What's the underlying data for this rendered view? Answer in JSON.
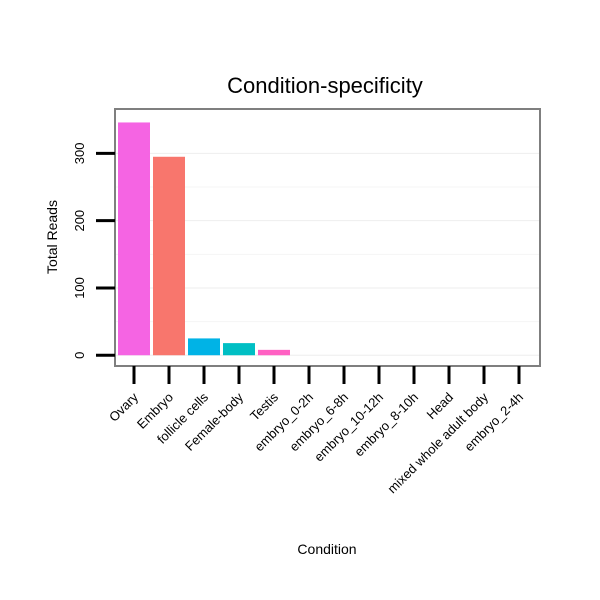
{
  "chart_data": {
    "type": "bar",
    "title": "Condition-specificity",
    "xlabel": "Condition",
    "ylabel": "Total Reads",
    "categories": [
      "Ovary",
      "Embryo",
      "follicle cells",
      "Female-body",
      "Testis",
      "embryo_0-2h",
      "embryo_6-8h",
      "embryo_10-12h",
      "embryo_8-10h",
      "Head",
      "mixed whole adult body",
      "embryo_2-4h"
    ],
    "values": [
      346,
      295,
      25,
      18,
      8,
      0,
      0,
      0,
      0,
      0,
      0,
      0
    ],
    "colors": [
      "#f564e3",
      "#f8766d",
      "#00b3e6",
      "#00bfc4",
      "#ff61c3",
      "#f564e3",
      "#f564e3",
      "#f564e3",
      "#f564e3",
      "#f564e3",
      "#f564e3",
      "#f564e3"
    ],
    "ylim": [
      -16,
      366
    ],
    "yticks": [
      0,
      100,
      200,
      300
    ],
    "grid": true,
    "legend": "none"
  }
}
